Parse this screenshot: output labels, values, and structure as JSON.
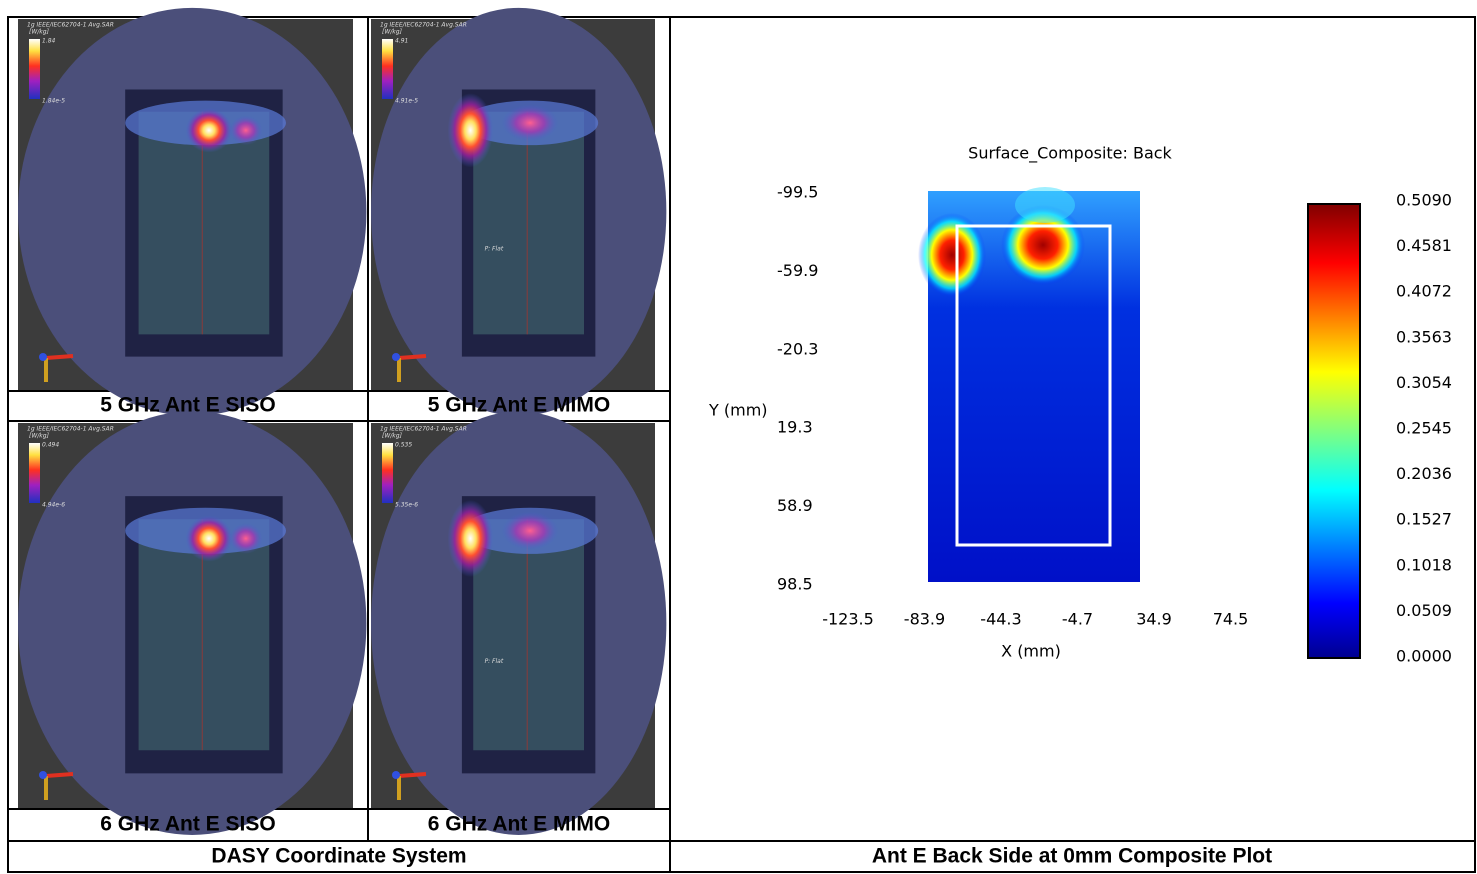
{
  "panels": [
    {
      "caption": "5 GHz Ant E SISO",
      "scale_title": "1g IEEE/IEC62704-1 Avg.SAR",
      "scale_unit": "[W/kg]",
      "scale_max": "1.84",
      "scale_min": "1.84e-5"
    },
    {
      "caption": "5 GHz Ant E MIMO",
      "scale_title": "1g IEEE/IEC62704-1 Avg.SAR",
      "scale_unit": "[W/kg]",
      "scale_max": "4.91",
      "scale_min": "4.91e-5",
      "probe_label": "P: Flat"
    },
    {
      "caption": "6 GHz Ant E SISO",
      "scale_title": "1g IEEE/IEC62704-1 Avg.SAR",
      "scale_unit": "[W/kg]",
      "scale_max": "0.494",
      "scale_min": "4.94e-6"
    },
    {
      "caption": "6 GHz Ant E MIMO",
      "scale_title": "1g IEEE/IEC62704-1 Avg.SAR",
      "scale_unit": "[W/kg]",
      "scale_max": "0.535",
      "scale_min": "5.35e-6",
      "probe_label": "P: Flat"
    }
  ],
  "left_footer": "DASY Coordinate System",
  "composite": {
    "title": "Surface_Composite: Back",
    "y_label": "Y (mm)",
    "x_label": "X (mm)",
    "y_ticks": [
      "-99.5",
      "-59.9",
      "-20.3",
      "19.3",
      "58.9",
      "98.5"
    ],
    "x_ticks": [
      "-123.5",
      "-83.9",
      "-44.3",
      "-4.7",
      "34.9",
      "74.5"
    ],
    "colorbar_ticks": [
      "0.5090",
      "0.4581",
      "0.4072",
      "0.3563",
      "0.3054",
      "0.2545",
      "0.2036",
      "0.1527",
      "0.1018",
      "0.0509",
      "0.0000"
    ]
  },
  "right_footer": "Ant E Back Side at 0mm Composite Plot"
}
